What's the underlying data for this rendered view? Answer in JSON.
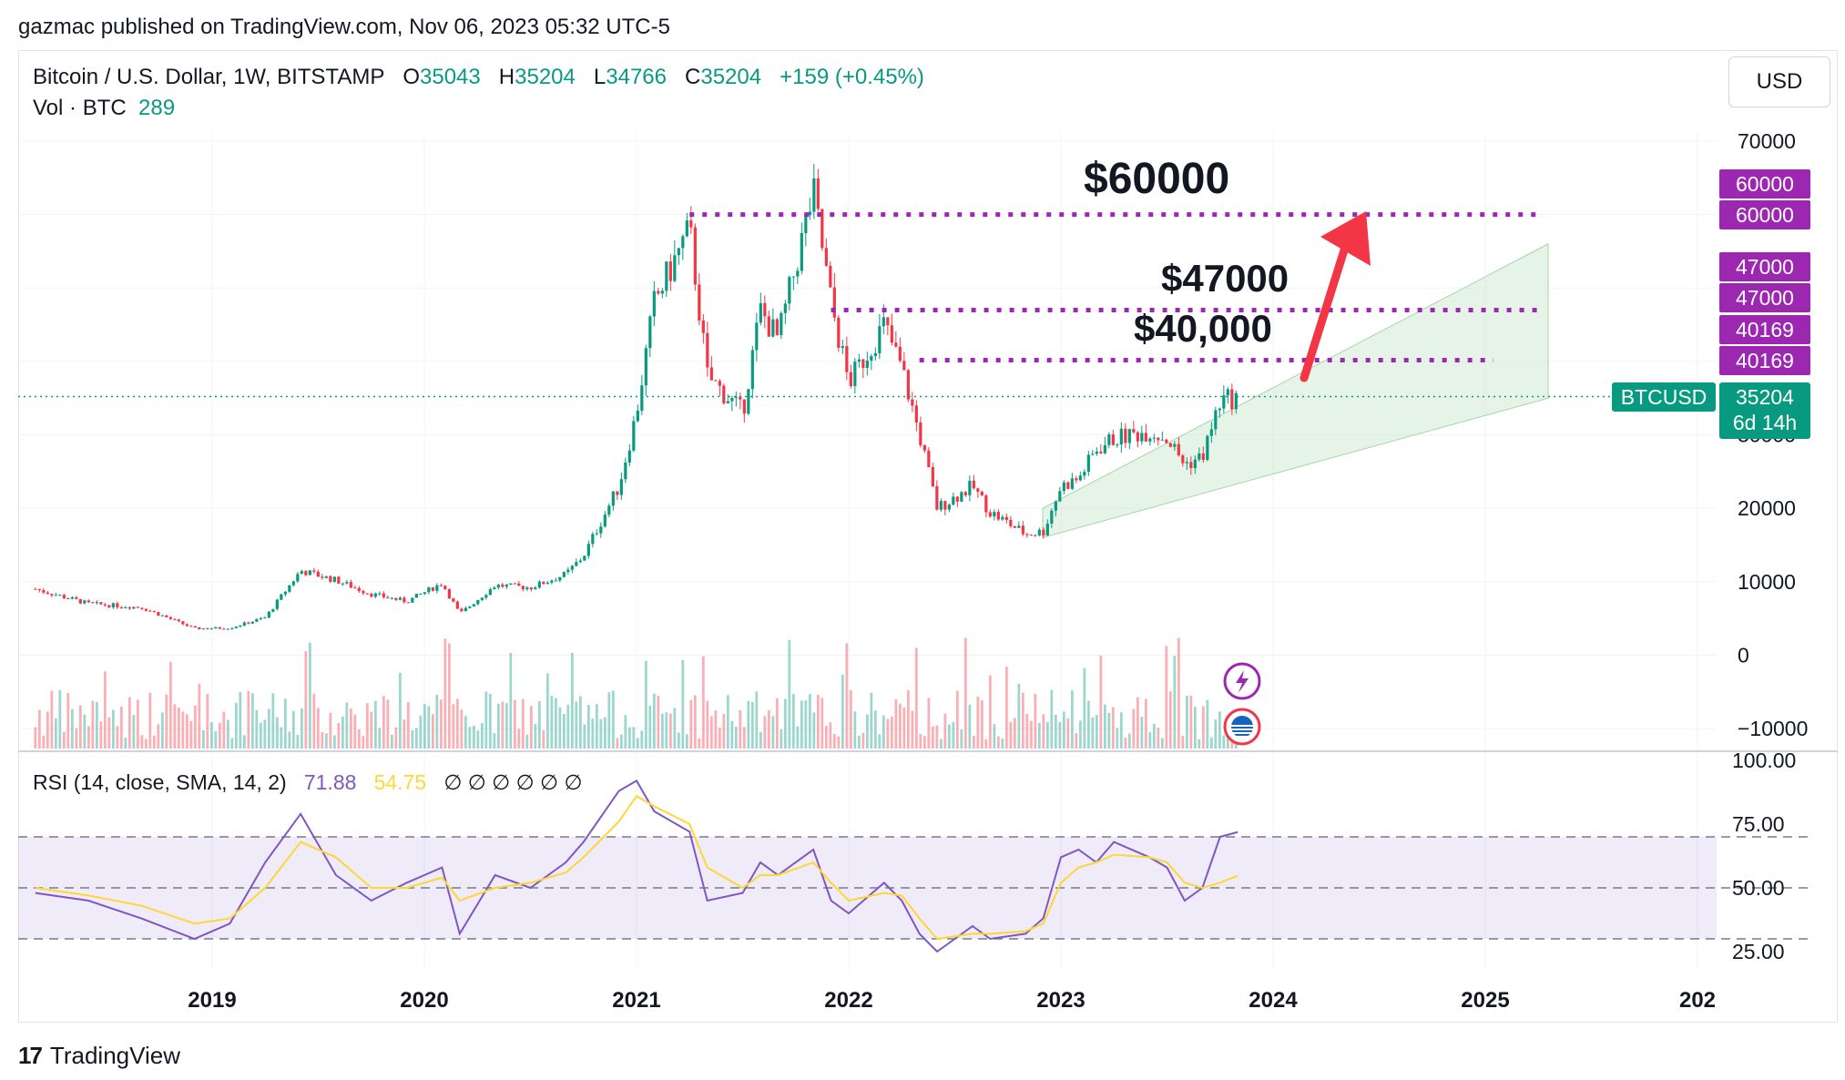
{
  "header": {
    "published": "gazmac published on TradingView.com, Nov 06, 2023 05:32 UTC-5"
  },
  "legend": {
    "symbol": "Bitcoin / U.S. Dollar, 1W, BITSTAMP",
    "o_label": "O",
    "o_value": "35043",
    "h_label": "H",
    "h_value": "35204",
    "l_label": "L",
    "l_value": "34766",
    "c_label": "C",
    "c_value": "35204",
    "change": "+159 (+0.45%)",
    "vol_label": "Vol · BTC",
    "vol_value": "289"
  },
  "currency": "USD",
  "rsi_legend": {
    "label": "RSI (14, close, SMA, 14, 2)",
    "rsi_value": "71.88",
    "sma_value": "54.75",
    "empties": "∅ ∅ ∅ ∅ ∅ ∅"
  },
  "badges": {
    "btcusd_label": "BTCUSD",
    "btcusd_price": "35204",
    "countdown": "6d 14h",
    "levels": [
      "60000",
      "60000",
      "47000",
      "47000",
      "40169",
      "40169"
    ]
  },
  "annotations": {
    "target_60000": "$60000",
    "target_47000": "$47000",
    "target_40000": "$40,000"
  },
  "footer": {
    "brand": "TradingView"
  },
  "colors": {
    "up": "#089981",
    "down": "#f23645",
    "level": "#9c27b0",
    "channel": "#c8e6c9",
    "rsi_line": "#7e57c2",
    "rsi_sma": "#fdd835",
    "arrow": "#f23645"
  },
  "chart_data": [
    {
      "type": "candlestick",
      "title": "Bitcoin / U.S. Dollar, 1W, BITSTAMP",
      "x": [
        "2018-03",
        "2018-06",
        "2018-09",
        "2018-12",
        "2019-02",
        "2019-04",
        "2019-06",
        "2019-08",
        "2019-10",
        "2019-12",
        "2020-02",
        "2020-03",
        "2020-05",
        "2020-07",
        "2020-09",
        "2020-10",
        "2020-12",
        "2021-01",
        "2021-02",
        "2021-04",
        "2021-05",
        "2021-07",
        "2021-08",
        "2021-09",
        "2021-11",
        "2021-12",
        "2022-01",
        "2022-03",
        "2022-04",
        "2022-05",
        "2022-06",
        "2022-08",
        "2022-09",
        "2022-11",
        "2022-12",
        "2023-01",
        "2023-02",
        "2023-03",
        "2023-04",
        "2023-06",
        "2023-07",
        "2023-08",
        "2023-09",
        "2023-10",
        "2023-11"
      ],
      "close": [
        9000,
        7000,
        6500,
        3600,
        3700,
        5100,
        11500,
        10200,
        8300,
        7300,
        9800,
        5600,
        9500,
        9200,
        11000,
        13500,
        23000,
        33000,
        48000,
        58000,
        38000,
        33000,
        47000,
        43000,
        63000,
        48000,
        37000,
        45000,
        39000,
        30000,
        20000,
        23000,
        19500,
        16500,
        16800,
        23000,
        24000,
        28000,
        29500,
        30500,
        29500,
        26000,
        27000,
        34500,
        35204
      ],
      "xticks": [
        "2019",
        "2020",
        "2021",
        "2022",
        "2023",
        "2024",
        "2025",
        "202"
      ],
      "yticks": [
        "70000",
        "60000",
        "30000",
        "20000",
        "10000",
        "0",
        "−10000"
      ],
      "ylim": [
        -10000,
        70000
      ],
      "levels": [
        60000,
        47000,
        40169
      ],
      "last_price": 35204,
      "annotations": [
        "$60000",
        "$47000",
        "$40,000"
      ]
    },
    {
      "type": "line",
      "title": "RSI (14, close, SMA, 14, 2)",
      "yticks": [
        "100.00",
        "75.00",
        "50.00",
        "25.00"
      ],
      "ylim": [
        25,
        100
      ],
      "bands": [
        30,
        50,
        70
      ],
      "series": [
        {
          "name": "RSI",
          "values": [
            48,
            45,
            38,
            30,
            36,
            60,
            79,
            55,
            45,
            52,
            58,
            32,
            55,
            50,
            60,
            68,
            88,
            92,
            80,
            72,
            45,
            48,
            60,
            55,
            65,
            45,
            40,
            52,
            45,
            32,
            25,
            35,
            30,
            32,
            38,
            62,
            65,
            60,
            68,
            62,
            58,
            45,
            50,
            70,
            71.88
          ]
        },
        {
          "name": "SMA",
          "values": [
            50,
            47,
            43,
            36,
            38,
            50,
            68,
            62,
            50,
            50,
            54,
            45,
            50,
            52,
            56,
            62,
            76,
            86,
            82,
            75,
            58,
            50,
            55,
            55,
            60,
            52,
            45,
            48,
            47,
            38,
            30,
            32,
            32,
            33,
            36,
            52,
            58,
            60,
            63,
            62,
            60,
            52,
            50,
            52,
            54.75
          ]
        }
      ]
    }
  ]
}
